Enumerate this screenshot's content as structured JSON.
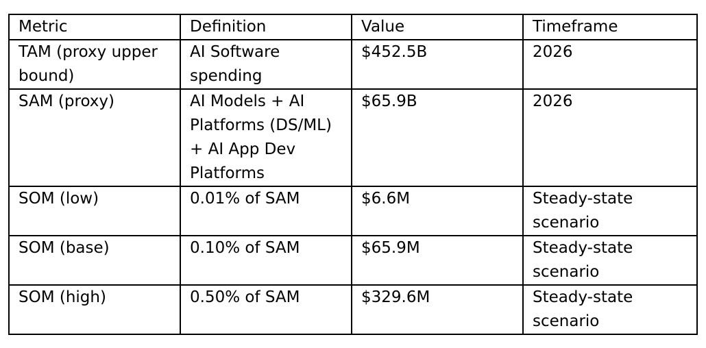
{
  "table": {
    "headers": [
      "Metric",
      "Definition",
      "Value",
      "Timeframe"
    ],
    "rows": [
      [
        "TAM (proxy upper\nbound)",
        "AI Software\nspending",
        "$452.5B",
        "2026"
      ],
      [
        "SAM (proxy)",
        "AI Models + AI\nPlatforms (DS/ML)\n+ AI App Dev\nPlatforms",
        "$65.9B",
        "2026"
      ],
      [
        "SOM (low)",
        "0.01% of SAM",
        "$6.6M",
        "Steady-state\nscenario"
      ],
      [
        "SOM (base)",
        "0.10% of SAM",
        "$65.9M",
        "Steady-state\nscenario"
      ],
      [
        "SOM (high)",
        "0.50% of SAM",
        "$329.6M",
        "Steady-state\nscenario"
      ]
    ]
  }
}
